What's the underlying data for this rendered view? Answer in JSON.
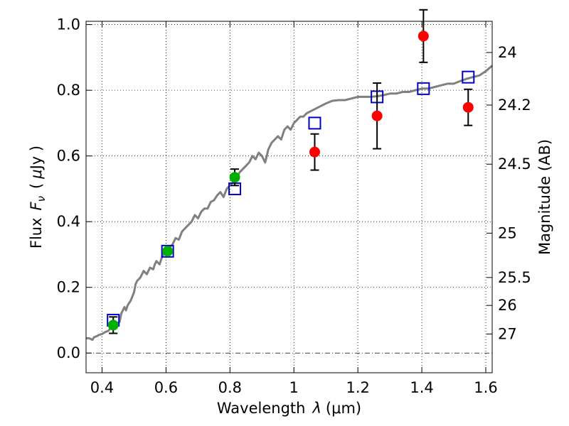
{
  "chart_data": {
    "type": "scatter",
    "xlabel": "Wavelength",
    "xlabel_symbol": "λ",
    "xlabel_unit": "(μm)",
    "ylabel": "Flux",
    "ylabel_symbol": "F",
    "ylabel_symbol_sub": "ν",
    "ylabel_unit_open": "(",
    "ylabel_unit_mu": "μ",
    "ylabel_unit_rest": "Jy )",
    "y2label": "Magnitude (AB)",
    "xlim": [
      0.35,
      1.62
    ],
    "ylim": [
      -0.06,
      1.01
    ],
    "grid": true,
    "x_ticks": [
      {
        "value": 0.4,
        "label": "0.4"
      },
      {
        "value": 0.6,
        "label": "0.6"
      },
      {
        "value": 0.8,
        "label": "0.8"
      },
      {
        "value": 1.0,
        "label": "1"
      },
      {
        "value": 1.2,
        "label": "1.2"
      },
      {
        "value": 1.4,
        "label": "1.4"
      },
      {
        "value": 1.6,
        "label": "1.6"
      }
    ],
    "y_ticks": [
      {
        "value": 0.0,
        "label": "0.0"
      },
      {
        "value": 0.2,
        "label": "0.2"
      },
      {
        "value": 0.4,
        "label": "0.4"
      },
      {
        "value": 0.6,
        "label": "0.6"
      },
      {
        "value": 0.8,
        "label": "0.8"
      },
      {
        "value": 1.0,
        "label": "1.0"
      }
    ],
    "y2_ticks": [
      {
        "flux": 0.915,
        "label": "24"
      },
      {
        "flux": 0.755,
        "label": "24.2"
      },
      {
        "flux": 0.575,
        "label": "24.5"
      },
      {
        "flux": 0.365,
        "label": "25"
      },
      {
        "flux": 0.23,
        "label": "25.5"
      },
      {
        "flux": 0.145,
        "label": "26"
      },
      {
        "flux": 0.058,
        "label": "27"
      }
    ],
    "model_line": {
      "color": "#808080",
      "x": [
        0.35,
        0.36,
        0.37,
        0.375,
        0.385,
        0.39,
        0.4,
        0.41,
        0.42,
        0.43,
        0.44,
        0.445,
        0.455,
        0.46,
        0.47,
        0.475,
        0.48,
        0.49,
        0.5,
        0.505,
        0.51,
        0.52,
        0.53,
        0.54,
        0.55,
        0.56,
        0.565,
        0.57,
        0.58,
        0.59,
        0.6,
        0.61,
        0.62,
        0.63,
        0.64,
        0.65,
        0.66,
        0.67,
        0.68,
        0.69,
        0.7,
        0.71,
        0.72,
        0.73,
        0.74,
        0.75,
        0.76,
        0.77,
        0.78,
        0.79,
        0.8,
        0.81,
        0.82,
        0.83,
        0.84,
        0.85,
        0.86,
        0.87,
        0.88,
        0.89,
        0.9,
        0.91,
        0.92,
        0.93,
        0.94,
        0.95,
        0.96,
        0.97,
        0.98,
        0.99,
        1.0,
        1.01,
        1.02,
        1.03,
        1.04,
        1.05,
        1.06,
        1.08,
        1.1,
        1.12,
        1.14,
        1.16,
        1.18,
        1.2,
        1.22,
        1.24,
        1.26,
        1.28,
        1.3,
        1.32,
        1.34,
        1.36,
        1.38,
        1.4,
        1.42,
        1.44,
        1.46,
        1.48,
        1.5,
        1.52,
        1.54,
        1.56,
        1.58,
        1.6,
        1.62
      ],
      "y": [
        0.045,
        0.045,
        0.04,
        0.048,
        0.052,
        0.055,
        0.058,
        0.064,
        0.068,
        0.08,
        0.082,
        0.09,
        0.095,
        0.12,
        0.14,
        0.13,
        0.145,
        0.16,
        0.185,
        0.21,
        0.22,
        0.23,
        0.25,
        0.24,
        0.26,
        0.255,
        0.27,
        0.28,
        0.27,
        0.3,
        0.3,
        0.32,
        0.33,
        0.35,
        0.345,
        0.37,
        0.38,
        0.39,
        0.4,
        0.42,
        0.41,
        0.43,
        0.44,
        0.44,
        0.46,
        0.465,
        0.48,
        0.49,
        0.475,
        0.5,
        0.51,
        0.52,
        0.53,
        0.55,
        0.56,
        0.57,
        0.58,
        0.6,
        0.59,
        0.61,
        0.6,
        0.58,
        0.62,
        0.64,
        0.65,
        0.66,
        0.65,
        0.68,
        0.69,
        0.68,
        0.7,
        0.71,
        0.72,
        0.72,
        0.73,
        0.735,
        0.74,
        0.75,
        0.76,
        0.768,
        0.77,
        0.77,
        0.775,
        0.78,
        0.78,
        0.78,
        0.782,
        0.785,
        0.79,
        0.79,
        0.795,
        0.795,
        0.8,
        0.805,
        0.805,
        0.81,
        0.815,
        0.82,
        0.82,
        0.828,
        0.835,
        0.84,
        0.845,
        0.858,
        0.875
      ]
    },
    "series": [
      {
        "marker": "open-square",
        "color": "#0000cc",
        "x": [
          0.435,
          0.605,
          0.815,
          1.065,
          1.26,
          1.405,
          1.545
        ],
        "y": [
          0.1,
          0.31,
          0.5,
          0.7,
          0.78,
          0.805,
          0.84
        ]
      },
      {
        "marker": "filled-circle",
        "color": "#00b000",
        "x": [
          0.435,
          0.605,
          0.815
        ],
        "y": [
          0.085,
          0.31,
          0.535
        ],
        "err": [
          0.025,
          0.0,
          0.025
        ]
      },
      {
        "marker": "filled-circle",
        "color": "#ff0000",
        "x": [
          1.065,
          1.26,
          1.405,
          1.545
        ],
        "y": [
          0.612,
          0.722,
          0.965,
          0.748
        ],
        "err": [
          0.055,
          0.1,
          0.08,
          0.055
        ]
      }
    ]
  }
}
